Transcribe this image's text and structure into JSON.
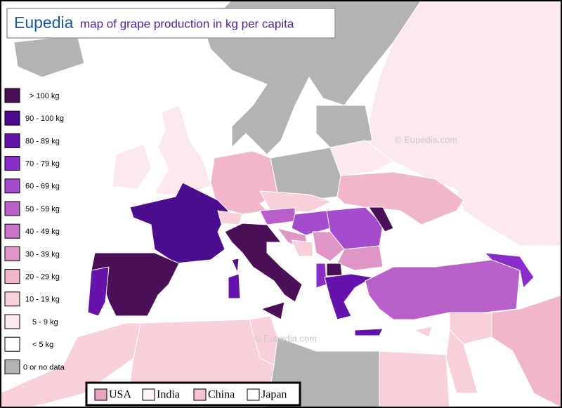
{
  "header": {
    "brand": "Eupedia",
    "title": "map of grape production in kg per capita"
  },
  "legend": [
    {
      "label": "> 100 kg",
      "color": "#4b0f57"
    },
    {
      "label": "90 - 100 kg",
      "color": "#4c0c8e"
    },
    {
      "label": "80 - 89 kg",
      "color": "#6512ad"
    },
    {
      "label": "70 - 79 kg",
      "color": "#8a2ccb"
    },
    {
      "label": "60 - 69 kg",
      "color": "#a44ccd"
    },
    {
      "label": "50 - 59 kg",
      "color": "#b85fca"
    },
    {
      "label": "40 - 49 kg",
      "color": "#c974c8"
    },
    {
      "label": "30 - 39 kg",
      "color": "#df95c5"
    },
    {
      "label": "20 - 29 kg",
      "color": "#f1b6cb"
    },
    {
      "label": "10 - 19 kg",
      "color": "#f8d0da"
    },
    {
      "label": "5 - 9 kg",
      "color": "#fce9ef"
    },
    {
      "label": "< 5 kg",
      "color": "#ffffff"
    },
    {
      "label": "0 or no data",
      "color": "#b3b3b3"
    }
  ],
  "comparison": [
    {
      "label": "USA",
      "color": "#e8a3c2"
    },
    {
      "label": "India",
      "color": "#fdf3f6"
    },
    {
      "label": "China",
      "color": "#f5c3d1"
    },
    {
      "label": "Japan",
      "color": "#ffffff"
    }
  ],
  "watermarks": [
    "© Eupedia.com",
    "© Eupedia.com"
  ]
}
